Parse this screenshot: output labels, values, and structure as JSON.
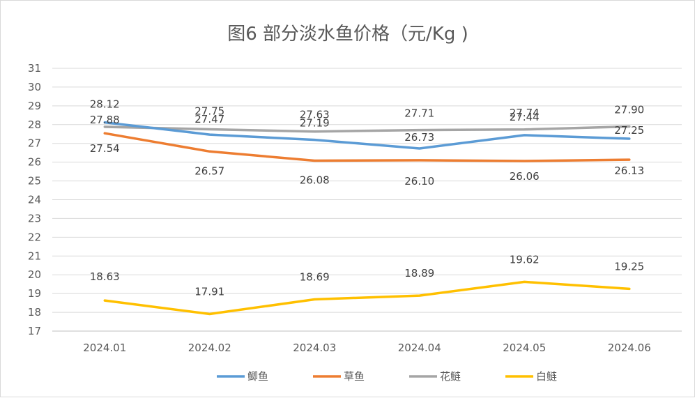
{
  "chart_data": {
    "type": "line",
    "title": "图6 部分淡水鱼价格（元/Kg )",
    "categories": [
      "2024.01",
      "2024.02",
      "2024.03",
      "2024.04",
      "2024.05",
      "2024.06"
    ],
    "ylim": [
      17,
      31
    ],
    "yticks": [
      17,
      18,
      19,
      20,
      21,
      22,
      23,
      24,
      25,
      26,
      27,
      28,
      29,
      30,
      31
    ],
    "grid": true,
    "legend_position": "bottom",
    "series": [
      {
        "name": "鲫鱼",
        "color": "#5b9bd5",
        "values": [
          28.12,
          27.47,
          27.19,
          26.73,
          27.44,
          27.25
        ],
        "labels": [
          "28.12",
          "27.47",
          "27.19",
          "26.73",
          "27.44",
          "27.25"
        ]
      },
      {
        "name": "草鱼",
        "color": "#ed7d31",
        "values": [
          27.54,
          26.57,
          26.08,
          26.1,
          26.06,
          26.13
        ],
        "labels": [
          "27.54",
          "26.57",
          "26.08",
          "26.10",
          "26.06",
          "26.13"
        ]
      },
      {
        "name": "花鲢",
        "color": "#a5a5a5",
        "values": [
          27.88,
          27.75,
          27.63,
          27.71,
          27.74,
          27.9
        ],
        "labels": [
          "27.88",
          "27.75",
          "27.63",
          "27.71",
          "27.74",
          "27.90"
        ]
      },
      {
        "name": "白鲢",
        "color": "#ffc000",
        "values": [
          18.63,
          17.91,
          18.69,
          18.89,
          19.62,
          19.25
        ],
        "labels": [
          "18.63",
          "17.91",
          "18.69",
          "18.89",
          "19.62",
          "19.25"
        ]
      }
    ]
  }
}
